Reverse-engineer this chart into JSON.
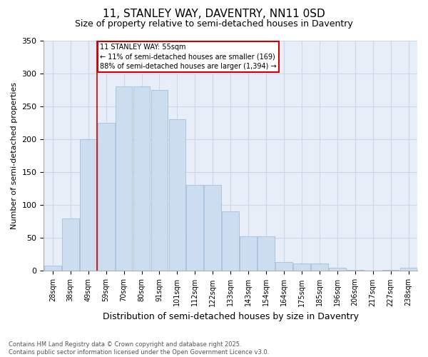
{
  "title": "11, STANLEY WAY, DAVENTRY, NN11 0SD",
  "subtitle": "Size of property relative to semi-detached houses in Daventry",
  "xlabel": "Distribution of semi-detached houses by size in Daventry",
  "ylabel": "Number of semi-detached properties",
  "categories": [
    "28sqm",
    "38sqm",
    "49sqm",
    "59sqm",
    "70sqm",
    "80sqm",
    "91sqm",
    "101sqm",
    "112sqm",
    "122sqm",
    "133sqm",
    "143sqm",
    "154sqm",
    "164sqm",
    "175sqm",
    "185sqm",
    "196sqm",
    "206sqm",
    "217sqm",
    "227sqm",
    "238sqm"
  ],
  "values": [
    8,
    80,
    200,
    225,
    280,
    280,
    275,
    230,
    130,
    130,
    90,
    52,
    52,
    13,
    11,
    11,
    5,
    2,
    1,
    2,
    5
  ],
  "bar_color": "#ccddf0",
  "bar_edge_color": "#a8c4e0",
  "vline_color": "#cc0000",
  "annotation_box_color": "#cc0000",
  "grid_color": "#ccd8ea",
  "background_color": "#e8eef8",
  "property_label": "11 STANLEY WAY: 55sqm",
  "smaller_pct": 11,
  "smaller_count": 169,
  "larger_pct": 88,
  "larger_count": 1394,
  "footer1": "Contains HM Land Registry data © Crown copyright and database right 2025.",
  "footer2": "Contains public sector information licensed under the Open Government Licence v3.0.",
  "ylim": [
    0,
    350
  ],
  "vline_pos": 2.5,
  "title_fontsize": 11,
  "subtitle_fontsize": 9,
  "ylabel_fontsize": 8,
  "xlabel_fontsize": 9,
  "tick_fontsize": 7,
  "annot_fontsize": 7,
  "footer_fontsize": 6
}
